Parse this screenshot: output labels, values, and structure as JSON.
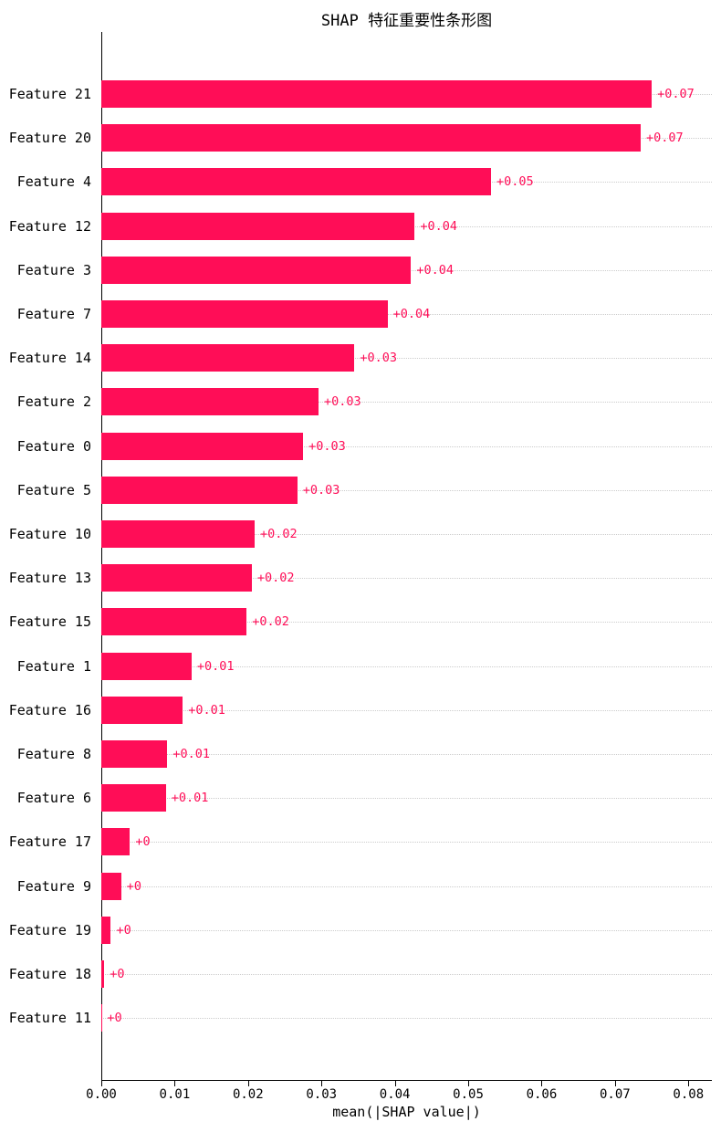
{
  "chart_data": {
    "type": "bar",
    "orientation": "horizontal",
    "title": "SHAP 特征重要性条形图",
    "xlabel": "mean(|SHAP value|)",
    "ylabel": "",
    "categories": [
      "Feature 21",
      "Feature 20",
      "Feature 4",
      "Feature 12",
      "Feature 3",
      "Feature 7",
      "Feature 14",
      "Feature 2",
      "Feature 0",
      "Feature 5",
      "Feature 10",
      "Feature 13",
      "Feature 15",
      "Feature 1",
      "Feature 16",
      "Feature 8",
      "Feature 6",
      "Feature 17",
      "Feature 9",
      "Feature 19",
      "Feature 18",
      "Feature 11"
    ],
    "values": [
      0.075,
      0.0735,
      0.0531,
      0.0427,
      0.0422,
      0.039,
      0.0345,
      0.0296,
      0.0275,
      0.0267,
      0.0209,
      0.0205,
      0.0198,
      0.0123,
      0.0111,
      0.009,
      0.0088,
      0.0039,
      0.0027,
      0.0013,
      0.0004,
      5e-05
    ],
    "bar_labels": [
      "+0.07",
      "+0.07",
      "+0.05",
      "+0.04",
      "+0.04",
      "+0.04",
      "+0.03",
      "+0.03",
      "+0.03",
      "+0.03",
      "+0.02",
      "+0.02",
      "+0.02",
      "+0.01",
      "+0.01",
      "+0.01",
      "+0.01",
      "+0",
      "+0",
      "+0",
      "+0",
      "+0"
    ],
    "xlim": [
      0,
      0.0832
    ],
    "x_tick_values": [
      0.0,
      0.01,
      0.02,
      0.03,
      0.04,
      0.05,
      0.06,
      0.07,
      0.08
    ],
    "x_tick_labels": [
      "0.00",
      "0.01",
      "0.02",
      "0.03",
      "0.04",
      "0.05",
      "0.06",
      "0.07",
      "0.08"
    ],
    "grid": "horizontal-dotted",
    "legend": "none",
    "colors": {
      "bar": "#ff0d57",
      "bar_label": "#ff0d57",
      "grid": "#cccccc",
      "axis": "#000000",
      "text": "#000000"
    }
  }
}
